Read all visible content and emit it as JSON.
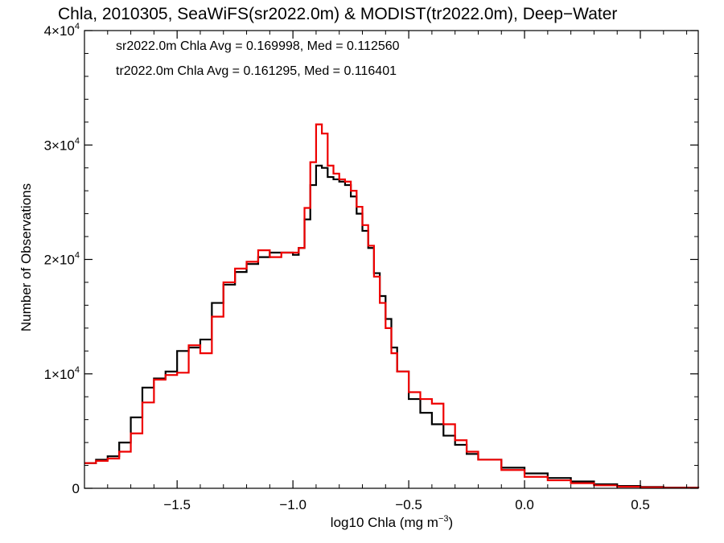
{
  "chart_data": {
    "type": "line",
    "step": true,
    "title": "Chla, 2010305, SeaWiFS(sr2022.0m) & MODIST(tr2022.0m), Deep−Water",
    "xlabel": "log10 Chla (mg m",
    "xlabel_sup": "−3",
    "xlabel_end": ")",
    "ylabel": "Number of Observations",
    "xlim": [
      -1.9,
      0.75
    ],
    "ylim": [
      0,
      40000
    ],
    "x_ticks": [
      {
        "value": -1.5,
        "label": "−1.5"
      },
      {
        "value": -1.0,
        "label": "−1.0"
      },
      {
        "value": -0.5,
        "label": "−0.5"
      },
      {
        "value": 0.0,
        "label": "0.0"
      },
      {
        "value": 0.5,
        "label": "0.5"
      }
    ],
    "y_ticks": [
      {
        "value": 0,
        "base": "0",
        "sup": ""
      },
      {
        "value": 10000,
        "base": "1×10",
        "sup": "4"
      },
      {
        "value": 20000,
        "base": "2×10",
        "sup": "4"
      },
      {
        "value": 30000,
        "base": "3×10",
        "sup": "4"
      },
      {
        "value": 40000,
        "base": "4×10",
        "sup": "4"
      }
    ],
    "legend_placement": "top-left",
    "series": [
      {
        "name": "sr2022.0m Chla Avg = 0.169998, Med = 0.112560",
        "color": "#000000",
        "x": [
          -1.9,
          -1.85,
          -1.8,
          -1.75,
          -1.7,
          -1.65,
          -1.6,
          -1.55,
          -1.5,
          -1.45,
          -1.4,
          -1.35,
          -1.3,
          -1.25,
          -1.2,
          -1.15,
          -1.1,
          -1.05,
          -1.0,
          -0.975,
          -0.95,
          -0.925,
          -0.9,
          -0.875,
          -0.85,
          -0.825,
          -0.8,
          -0.775,
          -0.75,
          -0.725,
          -0.7,
          -0.675,
          -0.65,
          -0.625,
          -0.6,
          -0.575,
          -0.55,
          -0.5,
          -0.45,
          -0.4,
          -0.35,
          -0.3,
          -0.25,
          -0.2,
          -0.1,
          0.0,
          0.1,
          0.2,
          0.3,
          0.4,
          0.5,
          0.6,
          0.75
        ],
        "y": [
          2200,
          2500,
          2800,
          4000,
          6200,
          8800,
          9600,
          10200,
          12000,
          12300,
          13000,
          16200,
          17800,
          18900,
          19600,
          20200,
          20600,
          20600,
          20400,
          21000,
          23500,
          26500,
          28200,
          28000,
          27200,
          27000,
          26800,
          26500,
          25500,
          24000,
          22500,
          21000,
          18800,
          16800,
          14800,
          12300,
          10200,
          7800,
          6600,
          5600,
          4600,
          3800,
          3000,
          2500,
          1800,
          1300,
          900,
          600,
          350,
          200,
          120,
          60,
          20
        ]
      },
      {
        "name": "tr2022.0m Chla Avg = 0.161295, Med = 0.116401",
        "color": "#ee0000",
        "x": [
          -1.9,
          -1.85,
          -1.8,
          -1.75,
          -1.7,
          -1.65,
          -1.6,
          -1.55,
          -1.5,
          -1.45,
          -1.4,
          -1.35,
          -1.3,
          -1.25,
          -1.2,
          -1.15,
          -1.1,
          -1.05,
          -1.0,
          -0.975,
          -0.95,
          -0.925,
          -0.9,
          -0.875,
          -0.85,
          -0.825,
          -0.8,
          -0.775,
          -0.75,
          -0.725,
          -0.7,
          -0.675,
          -0.65,
          -0.625,
          -0.6,
          -0.575,
          -0.55,
          -0.5,
          -0.45,
          -0.4,
          -0.35,
          -0.3,
          -0.25,
          -0.2,
          -0.1,
          0.0,
          0.1,
          0.2,
          0.3,
          0.4,
          0.5,
          0.6,
          0.75
        ],
        "y": [
          2200,
          2400,
          2600,
          3200,
          4800,
          7500,
          9500,
          9900,
          10100,
          12500,
          11800,
          15000,
          18000,
          19200,
          19800,
          20800,
          20200,
          20600,
          20600,
          21000,
          24500,
          28500,
          31800,
          31000,
          28200,
          27500,
          27000,
          26800,
          26000,
          24600,
          23000,
          21200,
          18500,
          16200,
          14000,
          11800,
          10200,
          8400,
          7800,
          7400,
          5600,
          4200,
          3200,
          2500,
          1600,
          1000,
          700,
          450,
          260,
          140,
          80,
          40,
          20
        ]
      }
    ]
  }
}
